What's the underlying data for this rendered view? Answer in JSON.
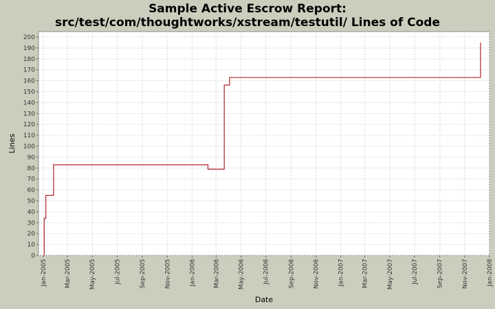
{
  "chart_data": {
    "type": "line",
    "step": true,
    "title_line1": "Sample Active Escrow Report:",
    "title_line2": "src/test/com/thoughtworks/xstream/testutil/ Lines of Code",
    "xlabel": "Date",
    "ylabel": "Lines",
    "xlim": [
      "2004-12-20",
      "2008-01-01"
    ],
    "ylim": [
      0,
      205
    ],
    "y_ticks": [
      0,
      10,
      20,
      30,
      40,
      50,
      60,
      70,
      80,
      90,
      100,
      110,
      120,
      130,
      140,
      150,
      160,
      170,
      180,
      190,
      200
    ],
    "x_ticks": [
      {
        "date": "2005-01-01",
        "label": "Jan-2005"
      },
      {
        "date": "2005-03-01",
        "label": "Mar-2005"
      },
      {
        "date": "2005-05-01",
        "label": "May-2005"
      },
      {
        "date": "2005-07-01",
        "label": "Jul-2005"
      },
      {
        "date": "2005-09-01",
        "label": "Sep-2005"
      },
      {
        "date": "2005-11-01",
        "label": "Nov-2005"
      },
      {
        "date": "2006-01-01",
        "label": "Jan-2006"
      },
      {
        "date": "2006-03-01",
        "label": "Mar-2006"
      },
      {
        "date": "2006-05-01",
        "label": "May-2006"
      },
      {
        "date": "2006-07-01",
        "label": "Jul-2006"
      },
      {
        "date": "2006-09-01",
        "label": "Sep-2006"
      },
      {
        "date": "2006-11-01",
        "label": "Nov-2006"
      },
      {
        "date": "2007-01-01",
        "label": "Jan-2007"
      },
      {
        "date": "2007-03-01",
        "label": "Mar-2007"
      },
      {
        "date": "2007-05-01",
        "label": "May-2007"
      },
      {
        "date": "2007-07-01",
        "label": "Jul-2007"
      },
      {
        "date": "2007-09-01",
        "label": "Sep-2007"
      },
      {
        "date": "2007-11-01",
        "label": "Nov-2007"
      },
      {
        "date": "2008-01-01",
        "label": "Jan-2008"
      }
    ],
    "grid": true,
    "series": [
      {
        "color": "#b0202a",
        "points": [
          {
            "x": "2005-01-03",
            "y": 0
          },
          {
            "x": "2005-01-03",
            "y": 34
          },
          {
            "x": "2005-01-07",
            "y": 34
          },
          {
            "x": "2005-01-07",
            "y": 55
          },
          {
            "x": "2005-01-26",
            "y": 55
          },
          {
            "x": "2005-01-26",
            "y": 83
          },
          {
            "x": "2006-02-09",
            "y": 83
          },
          {
            "x": "2006-02-09",
            "y": 79
          },
          {
            "x": "2006-03-21",
            "y": 79
          },
          {
            "x": "2006-03-21",
            "y": 156
          },
          {
            "x": "2006-04-03",
            "y": 156
          },
          {
            "x": "2006-04-03",
            "y": 163
          },
          {
            "x": "2007-12-10",
            "y": 163
          },
          {
            "x": "2007-12-10",
            "y": 195
          }
        ]
      }
    ]
  }
}
